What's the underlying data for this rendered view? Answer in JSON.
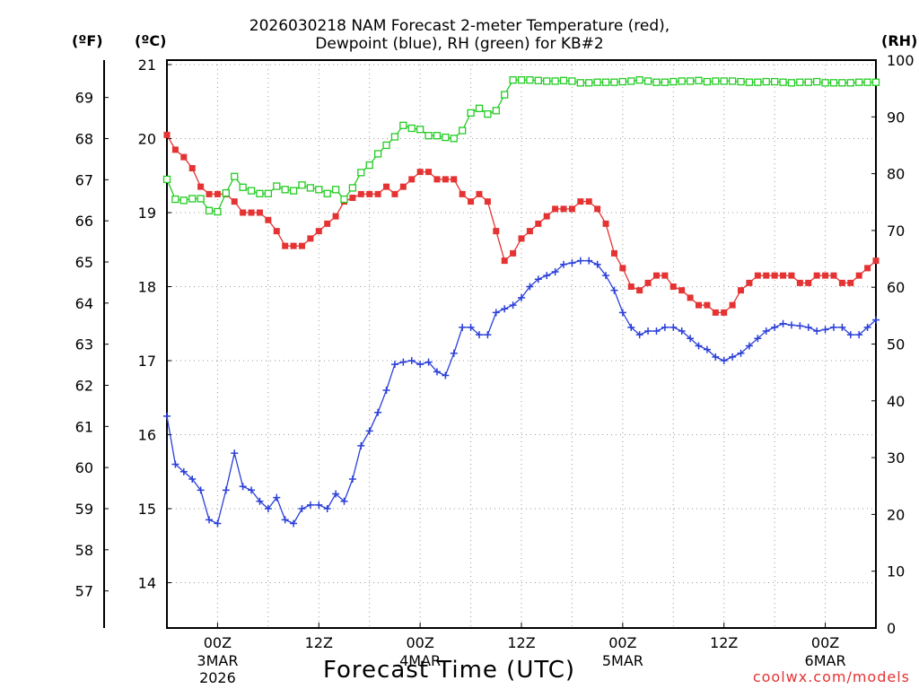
{
  "title": {
    "line1": "2026030218 NAM Forecast 2-meter Temperature (red),",
    "line2": "Dewpoint (blue), RH (green) for KB#2"
  },
  "units": {
    "fahrenheit": "(ºF)",
    "celsius": "(ºC)",
    "rh": "(RH)"
  },
  "x_axis_title": "Forecast Time (UTC)",
  "credit": "coolwx.com/models",
  "colors": {
    "temperature": "#e53232",
    "dewpoint": "#2a3fd8",
    "rh": "#22cc22",
    "grid": "#9a9a9a",
    "credit": "#e53232"
  },
  "chart_data": {
    "type": "line",
    "title": "2026030218 NAM Forecast 2-meter Temperature (red), Dewpoint (blue), RH (green) for KB#2",
    "xlabel": "Forecast Time (UTC)",
    "ylabel_left_outer": "(ºF)",
    "ylabel_left": "(ºC)",
    "ylabel_right": "(RH)",
    "x_unit": "hours since 2026-03-02 18Z",
    "x_range": [
      0,
      84
    ],
    "y_celsius_range": [
      13.4,
      21.1
    ],
    "y_fahrenheit_ticks": [
      57,
      58,
      59,
      60,
      61,
      62,
      63,
      64,
      65,
      66,
      67,
      68,
      69
    ],
    "y_celsius_ticks": [
      14,
      15,
      16,
      17,
      18,
      19,
      20,
      21
    ],
    "y_rh_range": [
      0,
      100
    ],
    "y_rh_ticks": [
      0,
      10,
      20,
      30,
      40,
      50,
      60,
      70,
      80,
      90,
      100
    ],
    "x_ticks": [
      {
        "x": 6,
        "label": "00Z",
        "sub1": "3MAR",
        "sub2": "2026"
      },
      {
        "x": 18,
        "label": "12Z",
        "sub1": "",
        "sub2": ""
      },
      {
        "x": 30,
        "label": "00Z",
        "sub1": "4MAR",
        "sub2": ""
      },
      {
        "x": 42,
        "label": "12Z",
        "sub1": "",
        "sub2": ""
      },
      {
        "x": 54,
        "label": "00Z",
        "sub1": "5MAR",
        "sub2": ""
      },
      {
        "x": 66,
        "label": "12Z",
        "sub1": "",
        "sub2": ""
      },
      {
        "x": 78,
        "label": "00Z",
        "sub1": "6MAR",
        "sub2": ""
      }
    ],
    "grid": true,
    "series": [
      {
        "name": "Temperature",
        "axis": "celsius",
        "color": "#e53232",
        "marker": "filled-square",
        "x": [
          0,
          1,
          2,
          3,
          4,
          5,
          6,
          7,
          8,
          9,
          10,
          11,
          12,
          13,
          14,
          15,
          16,
          17,
          18,
          19,
          20,
          21,
          22,
          23,
          24,
          25,
          26,
          27,
          28,
          29,
          30,
          31,
          32,
          33,
          34,
          35,
          36,
          37,
          38,
          39,
          40,
          41,
          42,
          43,
          44,
          45,
          46,
          47,
          48,
          49,
          50,
          51,
          52,
          53,
          54,
          55,
          56,
          57,
          58,
          59,
          60,
          61,
          62,
          63,
          64,
          65,
          66,
          67,
          68,
          69,
          70,
          71,
          72,
          73,
          74,
          75,
          76,
          77,
          78,
          79,
          80,
          81,
          82,
          83,
          84
        ],
        "values": [
          20.05,
          19.85,
          19.75,
          19.6,
          19.35,
          19.25,
          19.25,
          19.25,
          19.15,
          19.0,
          19.0,
          19.0,
          18.9,
          18.75,
          18.55,
          18.55,
          18.55,
          18.65,
          18.75,
          18.85,
          18.95,
          19.15,
          19.2,
          19.25,
          19.25,
          19.25,
          19.35,
          19.25,
          19.35,
          19.45,
          19.55,
          19.55,
          19.45,
          19.45,
          19.45,
          19.25,
          19.15,
          19.25,
          19.15,
          18.75,
          18.35,
          18.45,
          18.65,
          18.75,
          18.85,
          18.95,
          19.05,
          19.05,
          19.05,
          19.15,
          19.15,
          19.05,
          18.85,
          18.45,
          18.25,
          18.0,
          17.95,
          18.05,
          18.15,
          18.15,
          18.0,
          17.95,
          17.85,
          17.75,
          17.75,
          17.65,
          17.65,
          17.75,
          17.95,
          18.05,
          18.15,
          18.15,
          18.15,
          18.15,
          18.15,
          18.05,
          18.05,
          18.15,
          18.15,
          18.15,
          18.05,
          18.05,
          18.15,
          18.25,
          18.35
        ]
      },
      {
        "name": "Dewpoint",
        "axis": "celsius",
        "color": "#2a3fd8",
        "marker": "plus",
        "x": [
          0,
          1,
          2,
          3,
          4,
          5,
          6,
          7,
          8,
          9,
          10,
          11,
          12,
          13,
          14,
          15,
          16,
          17,
          18,
          19,
          20,
          21,
          22,
          23,
          24,
          25,
          26,
          27,
          28,
          29,
          30,
          31,
          32,
          33,
          34,
          35,
          36,
          37,
          38,
          39,
          40,
          41,
          42,
          43,
          44,
          45,
          46,
          47,
          48,
          49,
          50,
          51,
          52,
          53,
          54,
          55,
          56,
          57,
          58,
          59,
          60,
          61,
          62,
          63,
          64,
          65,
          66,
          67,
          68,
          69,
          70,
          71,
          72,
          73,
          74,
          75,
          76,
          77,
          78,
          79,
          80,
          81,
          82,
          83,
          84
        ],
        "values": [
          16.25,
          15.6,
          15.5,
          15.4,
          15.25,
          14.85,
          14.8,
          15.25,
          15.75,
          15.3,
          15.25,
          15.1,
          15.0,
          15.15,
          14.85,
          14.8,
          15.0,
          15.05,
          15.05,
          15.0,
          15.2,
          15.1,
          15.4,
          15.85,
          16.05,
          16.3,
          16.6,
          16.95,
          16.98,
          17.0,
          16.95,
          16.98,
          16.85,
          16.8,
          17.1,
          17.45,
          17.45,
          17.35,
          17.35,
          17.65,
          17.7,
          17.75,
          17.85,
          18.0,
          18.1,
          18.15,
          18.2,
          18.3,
          18.32,
          18.35,
          18.35,
          18.3,
          18.15,
          17.95,
          17.65,
          17.45,
          17.35,
          17.4,
          17.4,
          17.45,
          17.45,
          17.4,
          17.3,
          17.2,
          17.15,
          17.05,
          17.0,
          17.05,
          17.1,
          17.2,
          17.3,
          17.4,
          17.45,
          17.5,
          17.48,
          17.47,
          17.45,
          17.4,
          17.42,
          17.45,
          17.45,
          17.35,
          17.35,
          17.45,
          17.55
        ]
      },
      {
        "name": "RH",
        "axis": "rh",
        "color": "#22cc22",
        "marker": "open-square",
        "x": [
          0,
          1,
          2,
          3,
          4,
          5,
          6,
          7,
          8,
          9,
          10,
          11,
          12,
          13,
          14,
          15,
          16,
          17,
          18,
          19,
          20,
          21,
          22,
          23,
          24,
          25,
          26,
          27,
          28,
          29,
          30,
          31,
          32,
          33,
          34,
          35,
          36,
          37,
          38,
          39,
          40,
          41,
          42,
          43,
          44,
          45,
          46,
          47,
          48,
          49,
          50,
          51,
          52,
          53,
          54,
          55,
          56,
          57,
          58,
          59,
          60,
          61,
          62,
          63,
          64,
          65,
          66,
          67,
          68,
          69,
          70,
          71,
          72,
          73,
          74,
          75,
          76,
          77,
          78,
          79,
          80,
          81,
          82,
          83,
          84
        ],
        "values": [
          79,
          75.5,
          75.3,
          75.6,
          75.6,
          73.5,
          73.3,
          76.6,
          79.5,
          77.6,
          77,
          76.5,
          76.5,
          77.8,
          77.2,
          77,
          78,
          77.5,
          77.2,
          76.5,
          77.2,
          75.5,
          77.5,
          80.2,
          81.5,
          83.5,
          85,
          86.5,
          88.5,
          88,
          87.8,
          86.7,
          86.7,
          86.4,
          86.2,
          87.6,
          90.7,
          91.5,
          90.5,
          91.1,
          93.9,
          96.5,
          96.5,
          96.5,
          96.4,
          96.3,
          96.3,
          96.4,
          96.3,
          96.0,
          96.0,
          96.1,
          96.1,
          96.1,
          96.2,
          96.3,
          96.5,
          96.3,
          96.1,
          96.1,
          96.2,
          96.3,
          96.3,
          96.4,
          96.2,
          96.3,
          96.3,
          96.3,
          96.2,
          96.1,
          96.1,
          96.2,
          96.2,
          96.1,
          96.0,
          96.1,
          96.1,
          96.2,
          96.0,
          96.0,
          96.0,
          96.0,
          96.1,
          96.1,
          96.1
        ]
      }
    ]
  }
}
